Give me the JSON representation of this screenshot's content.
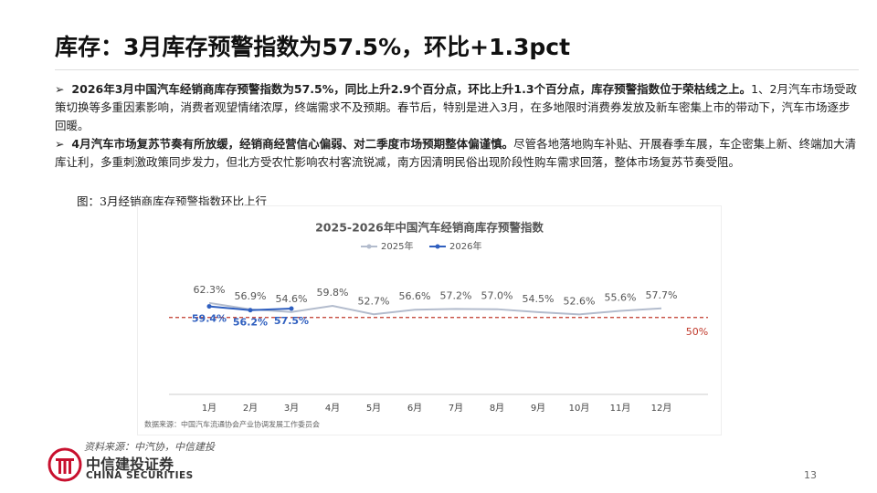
{
  "header": {
    "title": "库存：3月库存预警指数为57.5%，环比+1.3pct"
  },
  "bullets": [
    {
      "bold": "2026年3月中国汽车经销商库存预警指数为57.5%，同比上升2.9个百分点，环比上升1.3个百分点，库存预警指数位于荣枯线之上。",
      "text": "1、2月汽车市场受政策切换等多重因素影响，消费者观望情绪浓厚，终端需求不及预期。春节后，特别是进入3月，在多地限时消费券发放及新车密集上市的带动下，汽车市场逐步回暖。"
    },
    {
      "bold": "4月汽车市场复苏节奏有所放缓，经销商经营信心偏弱、对二季度市场预期整体偏谨慎。",
      "text": "尽管各地落地购车补贴、开展春季车展，车企密集上新、终端加大清库让利，多重刺激政策同步发力，但北方受农忙影响农村客流锐减，南方因清明民俗出现阶段性购车需求回落，整体市场复苏节奏受阻。"
    }
  ],
  "figure_caption": "图：3月经销商库存预警指数环比上行",
  "chart_data": {
    "type": "line",
    "title": "2025-2026年中国汽车经销商库存预警指数",
    "categories": [
      "1月",
      "2月",
      "3月",
      "4月",
      "5月",
      "6月",
      "7月",
      "8月",
      "9月",
      "10月",
      "11月",
      "12月"
    ],
    "series": [
      {
        "name": "2025年",
        "color": "#b3bccd",
        "values": [
          62.3,
          56.9,
          54.6,
          59.8,
          52.7,
          56.6,
          57.2,
          57.0,
          54.5,
          52.6,
          55.6,
          57.7
        ],
        "value_labels": [
          "62.3%",
          "56.9%",
          "54.6%",
          "59.8%",
          "52.7%",
          "56.6%",
          "57.2%",
          "57.0%",
          "54.5%",
          "52.6%",
          "55.6%",
          "57.7%"
        ]
      },
      {
        "name": "2026年",
        "color": "#2f5fbf",
        "values": [
          59.4,
          56.2,
          57.5,
          null,
          null,
          null,
          null,
          null,
          null,
          null,
          null,
          null
        ],
        "value_labels": [
          "59.4%",
          "56.2%",
          "57.5%",
          null,
          null,
          null,
          null,
          null,
          null,
          null,
          null,
          null
        ]
      }
    ],
    "ylim": [
      -15,
      110
    ],
    "reference_line": {
      "value": 50,
      "label": "50%",
      "color": "#c0392b"
    },
    "source": "数据来源：中国汽车流通协会产业协调发展工作委员会"
  },
  "footer": {
    "source": "资料来源：中汽协，中信建投",
    "logo_cn": "中信建投证券",
    "logo_en": "CHINA SECURITIES",
    "page": "13"
  }
}
